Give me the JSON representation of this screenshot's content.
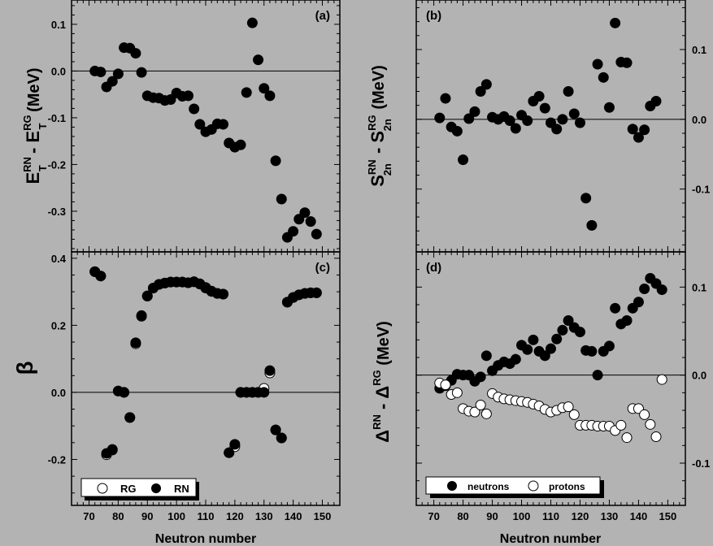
{
  "chart_data": [
    {
      "panel": "(a)",
      "type": "scatter",
      "ylabel": {
        "main": "E",
        "sup1": "RN",
        "sub1": "T",
        "mid": " - E",
        "sup2": "RG",
        "sub2": "T",
        "unit": " (MeV)"
      },
      "xlabel": "",
      "xlim": [
        64,
        156
      ],
      "ylim": [
        -0.387,
        0.152
      ],
      "yticks": [
        0.1,
        0.0,
        -0.1,
        -0.2,
        -0.3
      ],
      "ytick_labels": [
        "0.1",
        "0.0",
        "-0.1",
        "-0.2",
        "-0.3"
      ],
      "ytick_minor": 0.02,
      "ytick_side": "left",
      "zero_line": true,
      "series": [
        {
          "marker": "filled",
          "x": [
            72,
            74,
            76,
            78,
            80,
            82,
            84,
            86,
            88,
            90,
            92,
            94,
            96,
            98,
            100,
            102,
            104,
            106,
            108,
            110,
            112,
            114,
            116,
            118,
            120,
            122,
            124,
            126,
            128,
            130,
            132,
            134,
            136,
            138,
            140,
            142,
            144,
            146,
            148
          ],
          "values": [
            0.0,
            -0.002,
            -0.034,
            -0.022,
            -0.006,
            0.05,
            0.049,
            0.038,
            -0.003,
            -0.053,
            -0.057,
            -0.058,
            -0.063,
            -0.061,
            -0.047,
            -0.054,
            -0.053,
            -0.081,
            -0.114,
            -0.13,
            -0.125,
            -0.113,
            -0.114,
            -0.154,
            -0.163,
            -0.158,
            -0.046,
            0.103,
            0.024,
            -0.037,
            -0.053,
            -0.192,
            -0.274,
            -0.356,
            -0.343,
            -0.317,
            -0.303,
            -0.322,
            -0.349
          ]
        }
      ]
    },
    {
      "panel": "(b)",
      "type": "scatter",
      "ylabel": {
        "main": "S",
        "sup1": "RN",
        "sub1": "2n",
        "mid": " - S",
        "sup2": "RG",
        "sub2": "2n",
        "unit": " (MeV)"
      },
      "xlabel": "",
      "xlim": [
        64,
        156
      ],
      "ylim": [
        -0.19,
        0.171
      ],
      "yticks": [
        0.1,
        0.0,
        -0.1
      ],
      "ytick_labels": [
        "0.1",
        "0.0",
        "-0.1"
      ],
      "ytick_minor": 0.02,
      "ytick_side": "right",
      "zero_line": true,
      "series": [
        {
          "marker": "filled",
          "x": [
            72,
            74,
            76,
            78,
            80,
            82,
            84,
            86,
            88,
            90,
            92,
            94,
            96,
            98,
            100,
            102,
            104,
            106,
            108,
            110,
            112,
            114,
            116,
            118,
            120,
            122,
            124,
            126,
            128,
            130,
            132,
            134,
            136,
            138,
            140,
            142,
            144,
            146
          ],
          "values": [
            0.002,
            0.03,
            -0.011,
            -0.017,
            -0.058,
            0.001,
            0.011,
            0.04,
            0.05,
            0.003,
            0.0,
            0.004,
            -0.002,
            -0.013,
            0.006,
            -0.002,
            0.026,
            0.033,
            0.016,
            -0.005,
            -0.014,
            0.0,
            0.04,
            0.008,
            -0.005,
            -0.113,
            -0.152,
            0.079,
            0.06,
            0.017,
            0.138,
            0.082,
            0.081,
            -0.014,
            -0.026,
            -0.015,
            0.019,
            0.026
          ]
        }
      ]
    },
    {
      "panel": "(c)",
      "type": "scatter",
      "ylabel": {
        "main": "β"
      },
      "xlabel": "Neutron number",
      "xlim": [
        64,
        156
      ],
      "ylim": [
        -0.337,
        0.419
      ],
      "xticks": [
        70,
        80,
        90,
        100,
        110,
        120,
        130,
        140,
        150
      ],
      "xtick_labels": [
        "70",
        "80",
        "90",
        "100",
        "110",
        "120",
        "130",
        "140",
        "150"
      ],
      "yticks": [
        0.4,
        0.2,
        0.0,
        -0.2
      ],
      "ytick_labels": [
        "0.4",
        "0.2",
        "0.0",
        "-0.2"
      ],
      "ytick_minor": 0.05,
      "ytick_side": "left",
      "zero_line": true,
      "legend": {
        "placement": "bottom-left",
        "entries": [
          "RG",
          "RN"
        ]
      },
      "series": [
        {
          "name": "RG",
          "marker": "open",
          "x": [
            72,
            74,
            76,
            78,
            80,
            82,
            84,
            86,
            88,
            90,
            92,
            94,
            96,
            98,
            100,
            102,
            104,
            106,
            108,
            110,
            112,
            114,
            116,
            118,
            120,
            122,
            124,
            126,
            128,
            130,
            132,
            134,
            136,
            138,
            140,
            142,
            144,
            146,
            148
          ],
          "values": [
            0.36,
            0.347,
            -0.186,
            -0.172,
            0.004,
            0.0,
            -0.075,
            0.145,
            0.227,
            0.287,
            0.311,
            0.322,
            0.326,
            0.329,
            0.329,
            0.329,
            0.327,
            0.33,
            0.324,
            0.313,
            0.302,
            0.295,
            0.293,
            -0.18,
            -0.162,
            0.0,
            0.0,
            0.0,
            0.0,
            0.012,
            0.058,
            -0.112,
            -0.136,
            0.269,
            0.283,
            0.291,
            0.295,
            0.297,
            0.297
          ]
        },
        {
          "name": "RN",
          "marker": "filled",
          "x": [
            72,
            74,
            76,
            78,
            80,
            82,
            84,
            86,
            88,
            90,
            92,
            94,
            96,
            98,
            100,
            102,
            104,
            106,
            108,
            110,
            112,
            114,
            116,
            118,
            120,
            122,
            124,
            126,
            128,
            130,
            132,
            134,
            136,
            138,
            140,
            142,
            144,
            146,
            148
          ],
          "values": [
            0.36,
            0.347,
            -0.182,
            -0.17,
            0.004,
            0.0,
            -0.075,
            0.148,
            0.229,
            0.288,
            0.311,
            0.322,
            0.326,
            0.329,
            0.329,
            0.329,
            0.327,
            0.33,
            0.323,
            0.311,
            0.301,
            0.295,
            0.293,
            -0.18,
            -0.155,
            0.0,
            0.0,
            0.0,
            0.0,
            0.0,
            0.065,
            -0.112,
            -0.136,
            0.269,
            0.283,
            0.291,
            0.295,
            0.297,
            0.297
          ]
        }
      ]
    },
    {
      "panel": "(d)",
      "type": "scatter",
      "ylabel": {
        "main": "Δ",
        "sup1": "RN",
        "mid": " - Δ",
        "sup2": "RG",
        "unit": " (MeV)"
      },
      "xlabel": "Neutron number",
      "xlim": [
        64,
        156
      ],
      "ylim": [
        -0.148,
        0.14
      ],
      "xticks": [
        70,
        80,
        90,
        100,
        110,
        120,
        130,
        140,
        150
      ],
      "xtick_labels": [
        "70",
        "80",
        "90",
        "100",
        "110",
        "120",
        "130",
        "140",
        "150"
      ],
      "yticks": [
        0.1,
        0.0,
        -0.1
      ],
      "ytick_labels": [
        "0.1",
        "0.0",
        "-0.1"
      ],
      "ytick_minor": 0.02,
      "ytick_side": "right",
      "zero_line": true,
      "legend": {
        "placement": "bottom-left",
        "entries": [
          "neutrons",
          "protons"
        ]
      },
      "series": [
        {
          "name": "neutrons",
          "marker": "filled",
          "x": [
            72,
            74,
            76,
            78,
            80,
            82,
            84,
            86,
            88,
            90,
            92,
            94,
            96,
            98,
            100,
            102,
            104,
            106,
            108,
            110,
            112,
            114,
            116,
            118,
            120,
            122,
            124,
            126,
            128,
            130,
            132,
            134,
            136,
            138,
            140,
            142,
            144,
            146,
            148
          ],
          "values": [
            -0.015,
            -0.012,
            -0.006,
            0.001,
            0.0,
            0.0,
            -0.007,
            -0.002,
            0.022,
            0.005,
            0.011,
            0.015,
            0.013,
            0.018,
            0.034,
            0.029,
            0.04,
            0.027,
            0.022,
            0.03,
            0.041,
            0.051,
            0.062,
            0.054,
            0.049,
            0.028,
            0.027,
            0.0,
            0.027,
            0.033,
            0.076,
            0.058,
            0.062,
            0.076,
            0.083,
            0.098,
            0.11,
            0.104,
            0.097
          ]
        },
        {
          "name": "protons",
          "marker": "open",
          "x": [
            72,
            74,
            76,
            78,
            80,
            82,
            84,
            86,
            88,
            90,
            92,
            94,
            96,
            98,
            100,
            102,
            104,
            106,
            108,
            110,
            112,
            114,
            116,
            118,
            120,
            122,
            124,
            126,
            128,
            130,
            132,
            134,
            136,
            138,
            140,
            142,
            144,
            146,
            148
          ],
          "values": [
            -0.009,
            -0.011,
            -0.022,
            -0.02,
            -0.038,
            -0.041,
            -0.042,
            -0.034,
            -0.044,
            -0.021,
            -0.025,
            -0.027,
            -0.028,
            -0.029,
            -0.03,
            -0.031,
            -0.033,
            -0.035,
            -0.039,
            -0.042,
            -0.04,
            -0.037,
            -0.036,
            -0.045,
            -0.057,
            -0.057,
            -0.057,
            -0.058,
            -0.058,
            -0.058,
            -0.063,
            -0.057,
            -0.071,
            -0.038,
            -0.038,
            -0.045,
            -0.056,
            -0.07,
            -0.005
          ]
        }
      ]
    }
  ],
  "colors": {
    "background": "#b3b3b3",
    "marker_filled": "#000000",
    "marker_open": "#ffffff"
  }
}
